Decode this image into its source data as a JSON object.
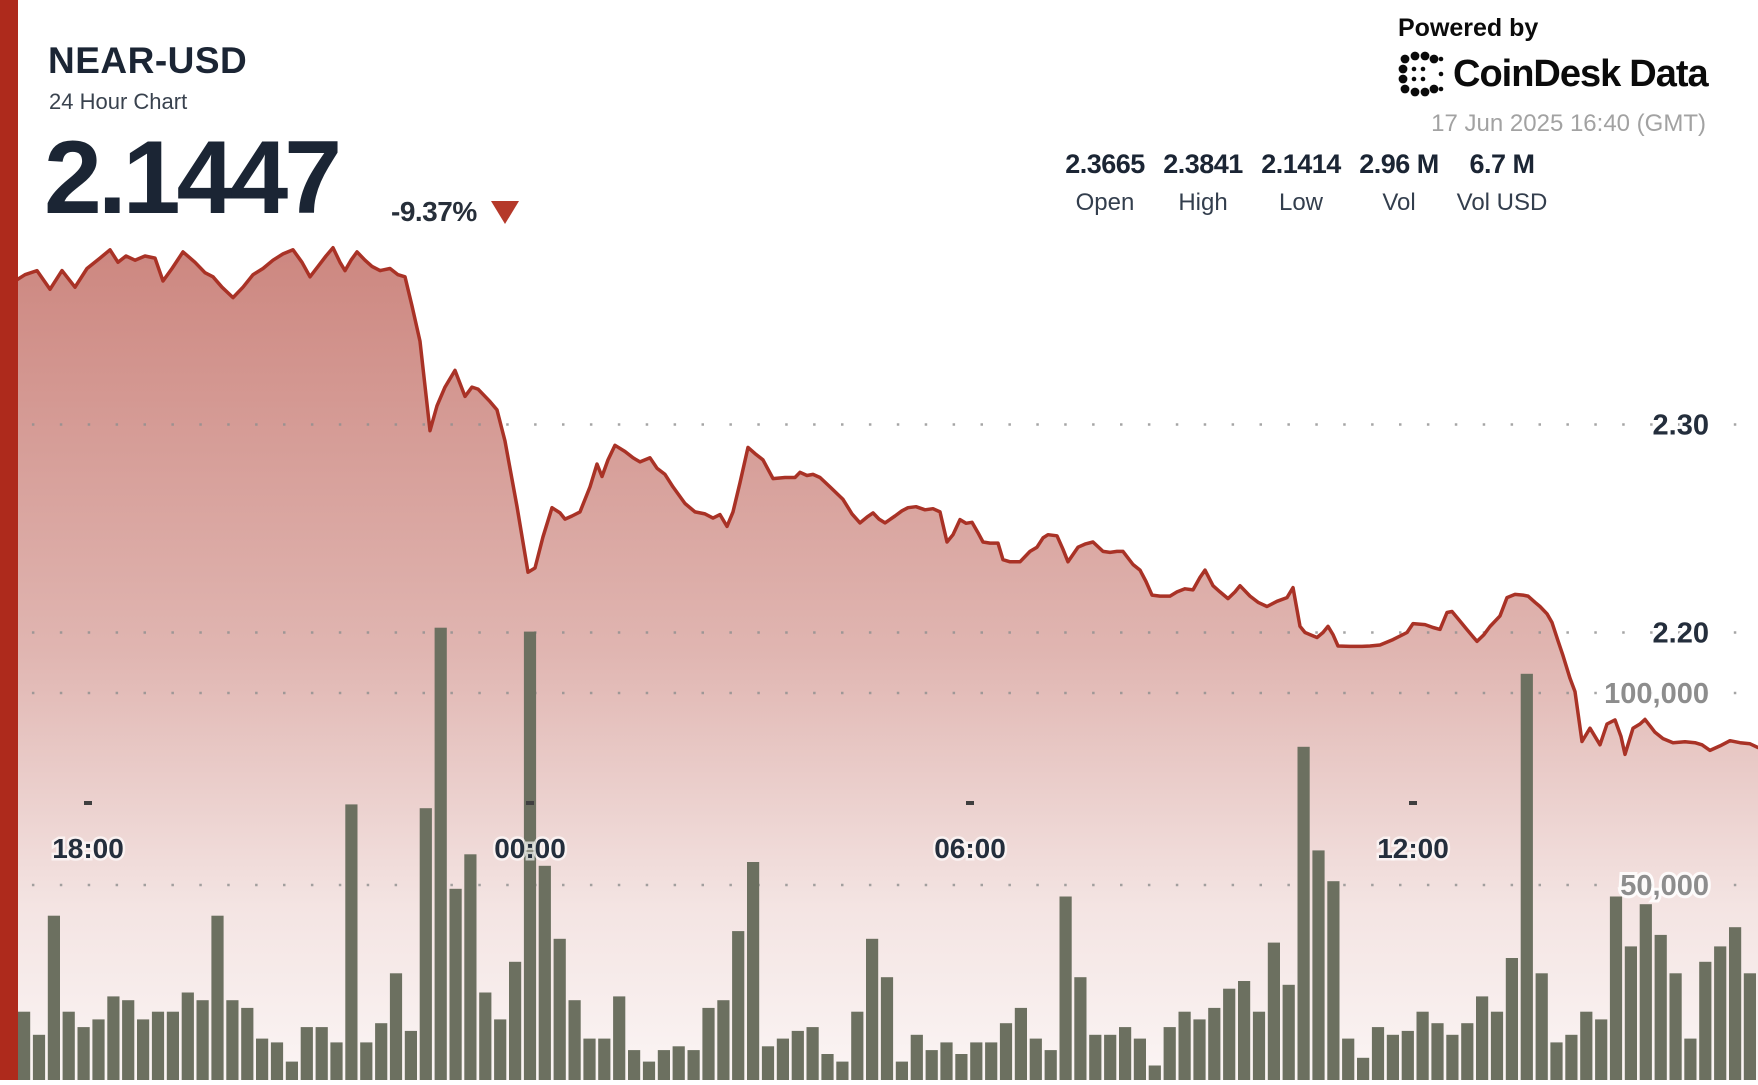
{
  "header": {
    "symbol": "NEAR-USD",
    "subtitle": "24 Hour Chart",
    "price": "2.1447",
    "change": "-9.37%",
    "change_direction": "down"
  },
  "powered_by": {
    "label": "Powered by",
    "brand": "CoinDesk",
    "brand2": "Data",
    "timestamp": "17 Jun 2025 16:40 (GMT)"
  },
  "stats": [
    {
      "value": "2.3665",
      "label": "Open"
    },
    {
      "value": "2.3841",
      "label": "High"
    },
    {
      "value": "2.1414",
      "label": "Low"
    },
    {
      "value": "2.96 M",
      "label": "Vol"
    },
    {
      "value": "6.7 M",
      "label": "Vol USD"
    }
  ],
  "chart_data": {
    "type": "line+bar",
    "title": "NEAR-USD 24 Hour Chart",
    "summary": {
      "open": 2.3665,
      "high": 2.3841,
      "low": 2.1414,
      "last": 2.1447,
      "change_pct": -9.37,
      "volume": 2960000,
      "volume_usd": 6700000
    },
    "x_axis": {
      "labels": [
        "18:00",
        "00:00",
        "06:00",
        "12:00"
      ]
    },
    "y_axis_price": {
      "ticks": [
        2.3,
        2.2
      ],
      "visible_range": [
        2.14,
        2.39
      ]
    },
    "y_axis_volume": {
      "ticks": [
        100000,
        50000
      ],
      "tick_labels": [
        "100,000",
        "50,000"
      ]
    },
    "colors": {
      "line": "#a93226",
      "fill": "#a93226",
      "bars": "#6c7060",
      "accent": "#ae2a1c",
      "price_tick_text": "#242e3c",
      "vol_tick_text": "#8d8d8d"
    },
    "price_points": [
      [
        0,
        2.368
      ],
      [
        8,
        2.371
      ],
      [
        15,
        2.369
      ],
      [
        25,
        2.372
      ],
      [
        37,
        2.374
      ],
      [
        50,
        2.365
      ],
      [
        62,
        2.374
      ],
      [
        75,
        2.366
      ],
      [
        87,
        2.375
      ],
      [
        100,
        2.38
      ],
      [
        110,
        2.384
      ],
      [
        118,
        2.378
      ],
      [
        126,
        2.381
      ],
      [
        135,
        2.379
      ],
      [
        145,
        2.381
      ],
      [
        155,
        2.38
      ],
      [
        163,
        2.369
      ],
      [
        172,
        2.375
      ],
      [
        183,
        2.383
      ],
      [
        195,
        2.378
      ],
      [
        205,
        2.373
      ],
      [
        213,
        2.371
      ],
      [
        222,
        2.366
      ],
      [
        233,
        2.361
      ],
      [
        243,
        2.366
      ],
      [
        253,
        2.372
      ],
      [
        263,
        2.375
      ],
      [
        273,
        2.379
      ],
      [
        283,
        2.382
      ],
      [
        293,
        2.384
      ],
      [
        302,
        2.378
      ],
      [
        310,
        2.371
      ],
      [
        318,
        2.376
      ],
      [
        326,
        2.381
      ],
      [
        333,
        2.385
      ],
      [
        340,
        2.378
      ],
      [
        345,
        2.374
      ],
      [
        351,
        2.379
      ],
      [
        357,
        2.383
      ],
      [
        365,
        2.379
      ],
      [
        372,
        2.376
      ],
      [
        380,
        2.374
      ],
      [
        390,
        2.375
      ],
      [
        398,
        2.372
      ],
      [
        405,
        2.371
      ],
      [
        412,
        2.357
      ],
      [
        420,
        2.34
      ],
      [
        430,
        2.297
      ],
      [
        437,
        2.309
      ],
      [
        445,
        2.318
      ],
      [
        455,
        2.326
      ],
      [
        465,
        2.3135
      ],
      [
        472,
        2.318
      ],
      [
        478,
        2.317
      ],
      [
        490,
        2.311
      ],
      [
        497,
        2.307
      ],
      [
        505,
        2.292
      ],
      [
        517,
        2.2606
      ],
      [
        528,
        2.229
      ],
      [
        535,
        2.231
      ],
      [
        543,
        2.246
      ],
      [
        552,
        2.26
      ],
      [
        560,
        2.2575
      ],
      [
        565,
        2.2545
      ],
      [
        572,
        2.256
      ],
      [
        580,
        2.258
      ],
      [
        590,
        2.27
      ],
      [
        597,
        2.281
      ],
      [
        602,
        2.275
      ],
      [
        608,
        2.283
      ],
      [
        615,
        2.29
      ],
      [
        625,
        2.287
      ],
      [
        633,
        2.284
      ],
      [
        640,
        2.282
      ],
      [
        650,
        2.284
      ],
      [
        657,
        2.279
      ],
      [
        665,
        2.276
      ],
      [
        673,
        2.27
      ],
      [
        685,
        2.262
      ],
      [
        695,
        2.258
      ],
      [
        705,
        2.257
      ],
      [
        713,
        2.255
      ],
      [
        720,
        2.2567
      ],
      [
        727,
        2.251
      ],
      [
        733,
        2.258
      ],
      [
        740,
        2.272
      ],
      [
        748,
        2.289
      ],
      [
        755,
        2.286
      ],
      [
        763,
        2.283
      ],
      [
        773,
        2.274
      ],
      [
        785,
        2.2745
      ],
      [
        795,
        2.2745
      ],
      [
        800,
        2.277
      ],
      [
        807,
        2.2755
      ],
      [
        813,
        2.276
      ],
      [
        820,
        2.2745
      ],
      [
        830,
        2.27
      ],
      [
        843,
        2.264
      ],
      [
        852,
        2.257
      ],
      [
        860,
        2.2527
      ],
      [
        867,
        2.2555
      ],
      [
        873,
        2.2575
      ],
      [
        879,
        2.2545
      ],
      [
        885,
        2.2527
      ],
      [
        895,
        2.256
      ],
      [
        902,
        2.2585
      ],
      [
        908,
        2.26
      ],
      [
        916,
        2.2605
      ],
      [
        925,
        2.259
      ],
      [
        933,
        2.2595
      ],
      [
        940,
        2.258
      ],
      [
        947,
        2.2435
      ],
      [
        953,
        2.247
      ],
      [
        960,
        2.2543
      ],
      [
        966,
        2.2525
      ],
      [
        972,
        2.253
      ],
      [
        978,
        2.248
      ],
      [
        983,
        2.2435
      ],
      [
        990,
        2.243
      ],
      [
        998,
        2.243
      ],
      [
        1003,
        2.235
      ],
      [
        1010,
        2.234
      ],
      [
        1020,
        2.234
      ],
      [
        1030,
        2.239
      ],
      [
        1037,
        2.241
      ],
      [
        1043,
        2.2455
      ],
      [
        1048,
        2.247
      ],
      [
        1057,
        2.2465
      ],
      [
        1063,
        2.24
      ],
      [
        1068,
        2.234
      ],
      [
        1078,
        2.241
      ],
      [
        1085,
        2.2425
      ],
      [
        1093,
        2.2435
      ],
      [
        1103,
        2.239
      ],
      [
        1110,
        2.2385
      ],
      [
        1117,
        2.239
      ],
      [
        1123,
        2.239
      ],
      [
        1133,
        2.2327
      ],
      [
        1140,
        2.23
      ],
      [
        1146,
        2.2245
      ],
      [
        1152,
        2.218
      ],
      [
        1160,
        2.2175
      ],
      [
        1170,
        2.2175
      ],
      [
        1177,
        2.2195
      ],
      [
        1185,
        2.221
      ],
      [
        1193,
        2.2205
      ],
      [
        1200,
        2.2265
      ],
      [
        1205,
        2.23
      ],
      [
        1213,
        2.2225
      ],
      [
        1220,
        2.2195
      ],
      [
        1228,
        2.2163
      ],
      [
        1235,
        2.2195
      ],
      [
        1240,
        2.2225
      ],
      [
        1250,
        2.2175
      ],
      [
        1258,
        2.2145
      ],
      [
        1267,
        2.2125
      ],
      [
        1277,
        2.215
      ],
      [
        1287,
        2.2168
      ],
      [
        1293,
        2.2216
      ],
      [
        1300,
        2.203
      ],
      [
        1305,
        2.2
      ],
      [
        1310,
        2.199
      ],
      [
        1317,
        2.1976
      ],
      [
        1323,
        2.2
      ],
      [
        1328,
        2.203
      ],
      [
        1333,
        2.199
      ],
      [
        1338,
        2.1935
      ],
      [
        1350,
        2.1933
      ],
      [
        1362,
        2.1933
      ],
      [
        1370,
        2.1935
      ],
      [
        1380,
        2.194
      ],
      [
        1393,
        2.1966
      ],
      [
        1407,
        2.2
      ],
      [
        1413,
        2.2043
      ],
      [
        1425,
        2.2038
      ],
      [
        1433,
        2.2024
      ],
      [
        1440,
        2.2015
      ],
      [
        1447,
        2.2096
      ],
      [
        1452,
        2.2101
      ],
      [
        1460,
        2.2055
      ],
      [
        1467,
        2.2014
      ],
      [
        1473,
        2.198
      ],
      [
        1477,
        2.1957
      ],
      [
        1484,
        2.199
      ],
      [
        1490,
        2.2029
      ],
      [
        1500,
        2.208
      ],
      [
        1507,
        2.2168
      ],
      [
        1515,
        2.2183
      ],
      [
        1523,
        2.218
      ],
      [
        1528,
        2.2175
      ],
      [
        1535,
        2.2145
      ],
      [
        1540,
        2.2125
      ],
      [
        1547,
        2.209
      ],
      [
        1552,
        2.2048
      ],
      [
        1558,
        2.196
      ],
      [
        1563,
        2.1889
      ],
      [
        1570,
        2.178
      ],
      [
        1575,
        2.1716
      ],
      [
        1582,
        2.1476
      ],
      [
        1590,
        2.154
      ],
      [
        1600,
        2.146
      ],
      [
        1607,
        2.156
      ],
      [
        1615,
        2.158
      ],
      [
        1621,
        2.15
      ],
      [
        1625,
        2.1414
      ],
      [
        1633,
        2.154
      ],
      [
        1640,
        2.156
      ],
      [
        1645,
        2.1582
      ],
      [
        1655,
        2.152
      ],
      [
        1663,
        2.149
      ],
      [
        1673,
        2.147
      ],
      [
        1685,
        2.1475
      ],
      [
        1695,
        2.147
      ],
      [
        1702,
        2.146
      ],
      [
        1710,
        2.1433
      ],
      [
        1720,
        2.1455
      ],
      [
        1730,
        2.148
      ],
      [
        1740,
        2.147
      ],
      [
        1750,
        2.1465
      ],
      [
        1758,
        2.1447
      ]
    ],
    "volume_bars": [
      17000,
      11000,
      42000,
      17000,
      13000,
      15000,
      21000,
      20000,
      15000,
      17000,
      17000,
      22000,
      20000,
      42000,
      20000,
      18000,
      10000,
      9000,
      4000,
      13000,
      13000,
      9000,
      71000,
      9000,
      14000,
      27000,
      12000,
      70000,
      117000,
      49000,
      58000,
      22000,
      15000,
      30000,
      116000,
      55000,
      36000,
      20000,
      10000,
      10000,
      21000,
      7000,
      4000,
      7000,
      8000,
      7000,
      18000,
      20000,
      38000,
      56000,
      8000,
      10000,
      12000,
      13000,
      6000,
      4000,
      17000,
      36000,
      26000,
      4000,
      11000,
      7000,
      9000,
      6000,
      9000,
      9000,
      14000,
      18000,
      10000,
      7000,
      47000,
      26000,
      11000,
      11000,
      13000,
      10000,
      3000,
      13000,
      17000,
      15000,
      18000,
      23000,
      25000,
      17000,
      35000,
      24000,
      86000,
      59000,
      51000,
      10000,
      5000,
      13000,
      11000,
      12000,
      17000,
      14000,
      11000,
      14000,
      21000,
      17000,
      31000,
      105000,
      27000,
      9000,
      11000,
      17000,
      15000,
      47000,
      34000,
      45000,
      37000,
      27000,
      10000,
      30000,
      34000,
      39000,
      27000
    ]
  }
}
